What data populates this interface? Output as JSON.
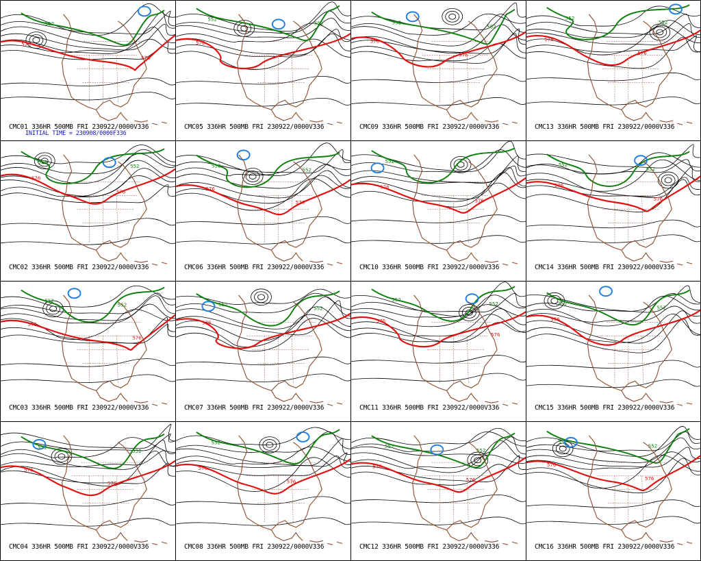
{
  "panels": [
    {
      "caption": "CMC01 336HR 500MB FRI 230922/0000V336",
      "init": "INITIAL TIME = 230908/0000F336",
      "red_labels": [
        "576",
        "576"
      ],
      "green_labels": [
        "552"
      ]
    },
    {
      "caption": "CMC05 336HR 500MB FRI 230922/0000V336",
      "red_labels": [
        "576"
      ],
      "green_labels": [
        "552",
        "552"
      ]
    },
    {
      "caption": "CMC09 336HR 500MB FRI 230922/0000V336",
      "red_labels": [
        "576",
        "576"
      ],
      "green_labels": [
        "552",
        "552"
      ]
    },
    {
      "caption": "CMC13 336HR 500MB FRI 230922/0000V336",
      "red_labels": [
        "576",
        "576"
      ],
      "green_labels": [
        "552",
        "552"
      ]
    },
    {
      "caption": "CMC02 336HR 500MB FRI 230922/0000V336",
      "red_labels": [
        "576",
        "576"
      ],
      "green_labels": [
        "552",
        "552"
      ]
    },
    {
      "caption": "CMC06 336HR 500MB FRI 230922/0000V336",
      "red_labels": [
        "576",
        "576"
      ],
      "green_labels": [
        "552",
        "552"
      ]
    },
    {
      "caption": "CMC10 336HR 500MB FRI 230922/0000V336",
      "red_labels": [
        "576",
        "576"
      ],
      "green_labels": [
        "552"
      ]
    },
    {
      "caption": "CMC14 336HR 500MB FRI 230922/0000V336",
      "red_labels": [
        "576",
        "576"
      ],
      "green_labels": [
        "552",
        "552"
      ]
    },
    {
      "caption": "CMC03 336HR 500MB FRI 230922/0000V336",
      "red_labels": [
        "576",
        "576"
      ],
      "green_labels": [
        "552",
        "552"
      ]
    },
    {
      "caption": "CMC07 336HR 500MB FRI 230922/0000V336",
      "red_labels": [
        "576"
      ],
      "green_labels": [
        "552",
        "552"
      ]
    },
    {
      "caption": "CMC11 336HR 500MB FRI 230922/0000V336",
      "red_labels": [
        "576",
        "576"
      ],
      "green_labels": [
        "552",
        "552"
      ]
    },
    {
      "caption": "CMC15 336HR 500MB FRI 230922/0000V336",
      "red_labels": [
        "576"
      ],
      "green_labels": [
        "552",
        "552"
      ]
    },
    {
      "caption": "CMC04 336HR 500MB FRI 230922/0000V336",
      "red_labels": [
        "576",
        "576"
      ],
      "green_labels": [
        "552",
        "552"
      ]
    },
    {
      "caption": "CMC08 336HR 500MB FRI 230922/0000V336",
      "red_labels": [
        "576",
        "576"
      ],
      "green_labels": [
        "552"
      ]
    },
    {
      "caption": "CMC12 336HR 500MB FRI 230922/0000V336",
      "red_labels": [
        "576",
        "576"
      ],
      "green_labels": [
        "552",
        "552"
      ]
    },
    {
      "caption": "CMC16 336HR 500MB FRI 230922/0000V336",
      "red_labels": [
        "576",
        "576"
      ],
      "green_labels": [
        "552",
        "552"
      ]
    }
  ],
  "colors": {
    "contour": "#000000",
    "line_576": "#e01010",
    "line_552": "#108010",
    "low_center": "#2080e0",
    "coastline": "#8b4a2b",
    "caption_text": "#000000",
    "init_text": "#1010c0",
    "background": "#ffffff"
  }
}
